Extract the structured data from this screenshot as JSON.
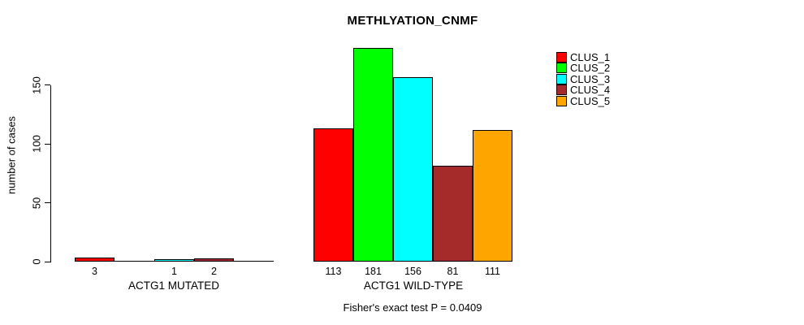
{
  "title": "METHLYATION_CNMF",
  "y_axis": {
    "label": "number of cases",
    "ticks": [
      0,
      50,
      100,
      150
    ]
  },
  "legend": {
    "items": [
      {
        "label": "CLUS_1",
        "color": "#FF0000"
      },
      {
        "label": "CLUS_2",
        "color": "#00FF00"
      },
      {
        "label": "CLUS_3",
        "color": "#00FFFF"
      },
      {
        "label": "CLUS_4",
        "color": "#A52A2A"
      },
      {
        "label": "CLUS_5",
        "color": "#FFA500"
      }
    ]
  },
  "footer": "Fisher's exact test P = 0.0409",
  "chart_data": {
    "type": "bar",
    "title": "METHLYATION_CNMF",
    "xlabel": "",
    "ylabel": "number of cases",
    "yticks": [
      0,
      50,
      100,
      150
    ],
    "ylim": [
      0,
      185
    ],
    "grid": false,
    "legend_position": "top-right",
    "series_names": [
      "CLUS_1",
      "CLUS_2",
      "CLUS_3",
      "CLUS_4",
      "CLUS_5"
    ],
    "colors": [
      "#FF0000",
      "#00FF00",
      "#00FFFF",
      "#A52A2A",
      "#FFA500"
    ],
    "groups": [
      {
        "label": "ACTG1 MUTATED",
        "values": [
          3,
          0,
          1,
          2,
          0
        ]
      },
      {
        "label": "ACTG1 WILD-TYPE",
        "values": [
          113,
          181,
          156,
          81,
          111
        ]
      }
    ],
    "bar_value_labels": "shown under each bar when value > 0",
    "annotation": "Fisher's exact test P = 0.0409"
  }
}
